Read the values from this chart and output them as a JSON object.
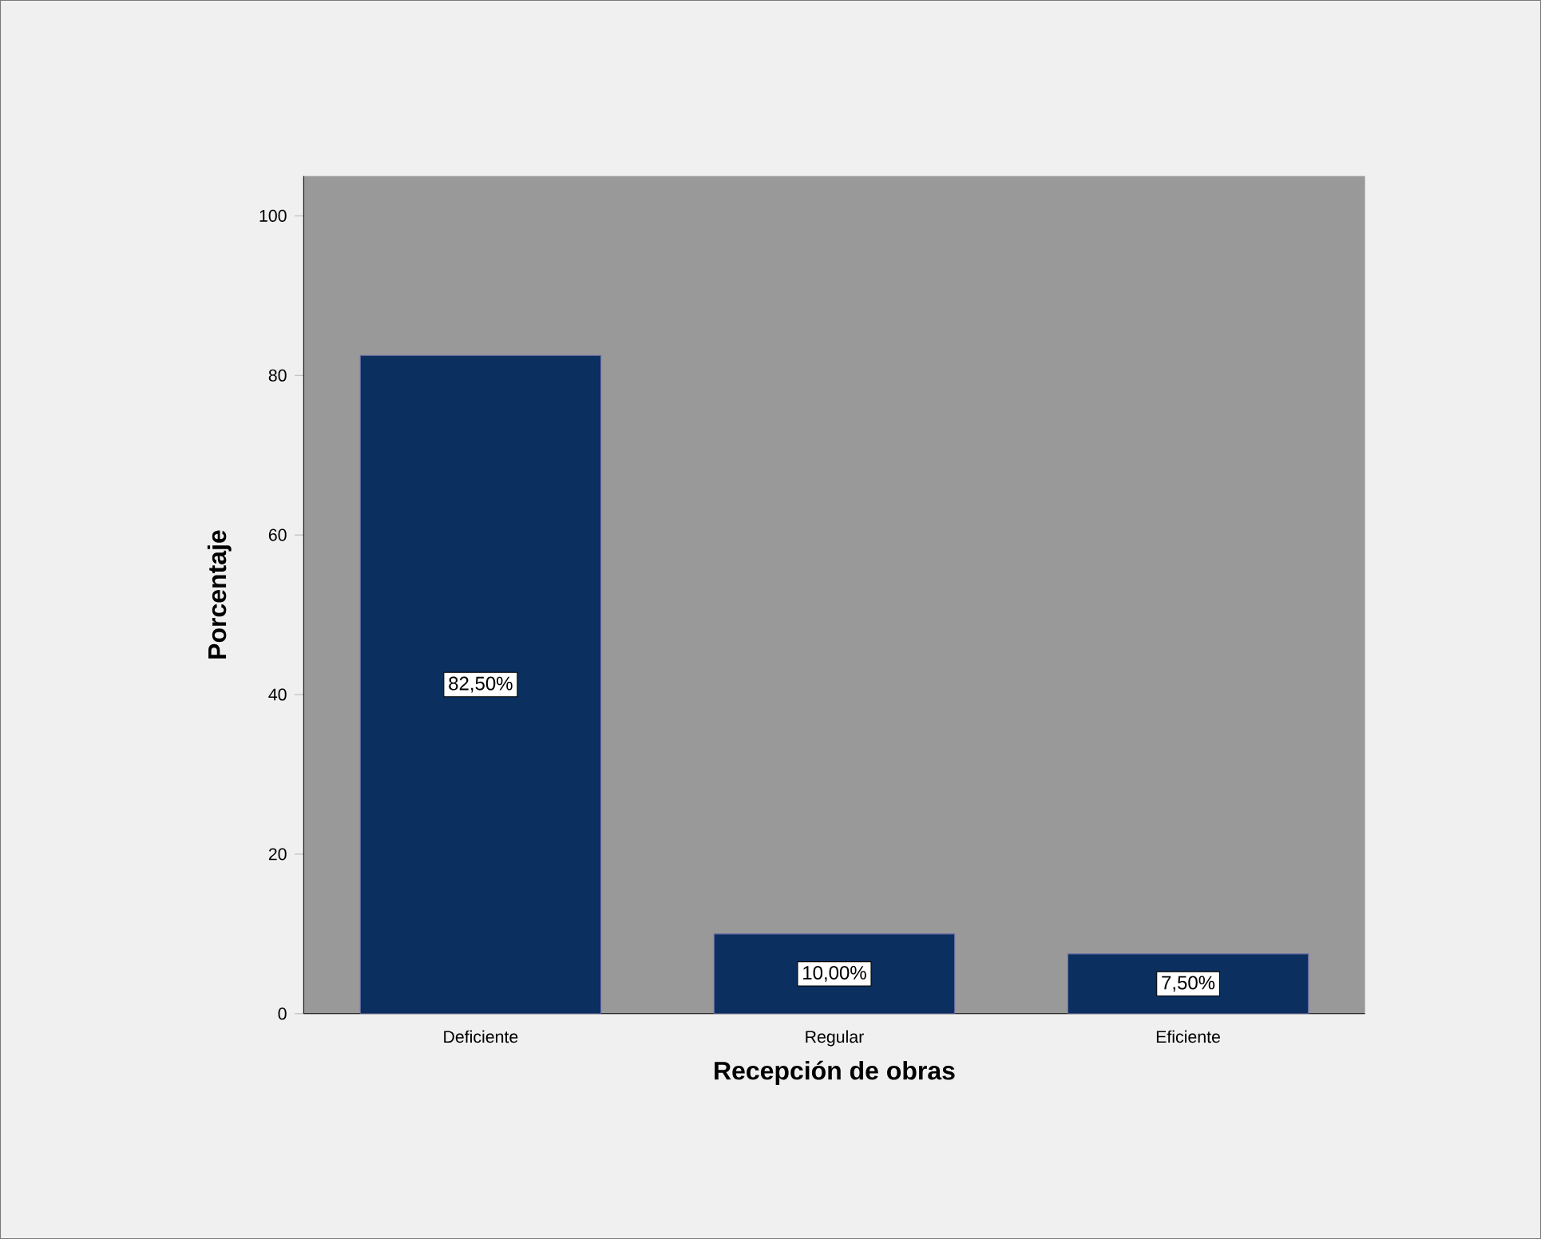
{
  "chart_data": {
    "type": "bar",
    "xlabel": "Recepción de obras",
    "ylabel": "Porcentaje",
    "categories": [
      "Deficiente",
      "Regular",
      "Eficiente"
    ],
    "values": [
      82.5,
      10,
      7.5
    ],
    "value_labels": [
      "82,50%",
      "10,00%",
      "7,50%"
    ],
    "color": "#0b2f5e",
    "ylim": [
      0,
      105
    ],
    "yticks": [
      0,
      20,
      40,
      60,
      80,
      100
    ]
  }
}
